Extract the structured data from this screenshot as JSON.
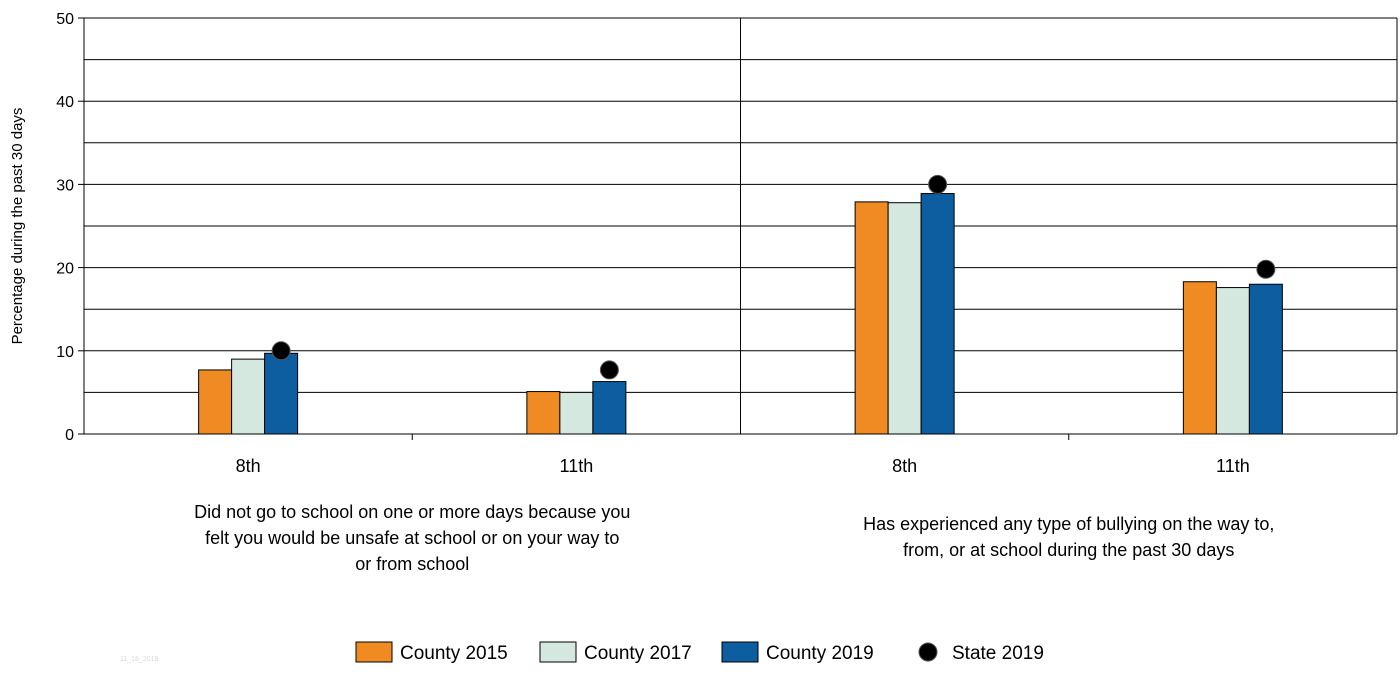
{
  "chart_data": {
    "type": "bar",
    "ylabel": "Percentage during the past 30 days",
    "ylim": [
      0,
      50
    ],
    "yticks": [
      0,
      10,
      20,
      30,
      40,
      50
    ],
    "grid": true,
    "legend_position": "bottom",
    "groups": [
      {
        "label": "Did not go to school on one or more days because you felt you would be unsafe at school or on your way to or from school",
        "label_lines": [
          "Did not go to school on one or more days because you",
          "felt you would be unsafe at school or on your way to",
          "or from school"
        ],
        "categories": [
          "8th",
          "11th"
        ]
      },
      {
        "label": "Has experienced any type of bullying on the way to, from, or at school during the past 30 days",
        "label_lines": [
          "Has experienced any type of bullying on the way to,",
          "from, or at school during the past 30 days"
        ],
        "categories": [
          "8th",
          "11th"
        ]
      }
    ],
    "series": [
      {
        "name": "County 2015",
        "kind": "bar",
        "color": "#ef8b22",
        "values": [
          7.7,
          5.1,
          27.9,
          18.3
        ]
      },
      {
        "name": "County 2017",
        "kind": "bar",
        "color": "#d5e8df",
        "values": [
          9.0,
          5.0,
          27.8,
          17.6
        ]
      },
      {
        "name": "County 2019",
        "kind": "bar",
        "color": "#0d5ea0",
        "values": [
          9.7,
          6.3,
          28.9,
          18.0
        ]
      },
      {
        "name": "State 2019",
        "kind": "marker",
        "color": "#000000",
        "values": [
          10.0,
          7.7,
          30.0,
          19.8
        ]
      }
    ],
    "footnote": "11_18_2019"
  }
}
